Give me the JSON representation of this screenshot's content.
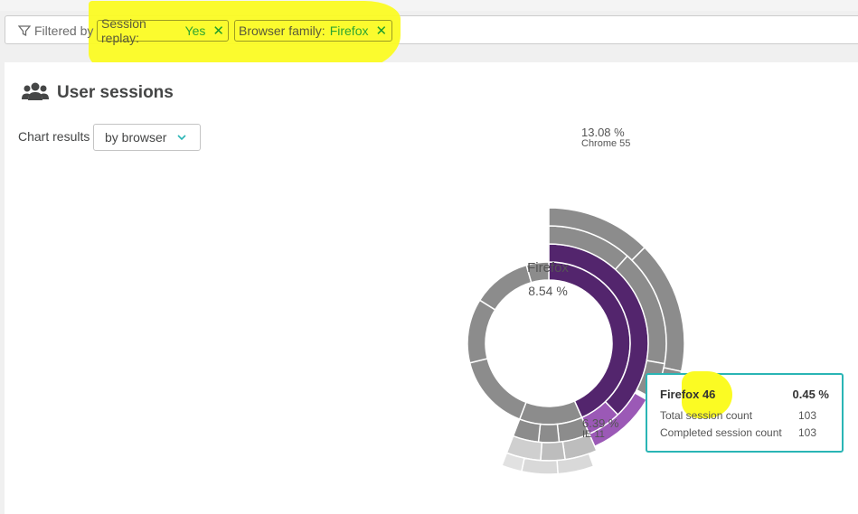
{
  "filter_bar": {
    "label": "Filtered by",
    "chips": [
      {
        "key": "Session replay:",
        "value": "Yes"
      },
      {
        "key": "Browser family:",
        "value": "Firefox"
      }
    ]
  },
  "panel": {
    "title": "User sessions",
    "chart_results_label": "Chart results",
    "dropdown_value": "by browser"
  },
  "chart": {
    "center_name": "Firefox",
    "center_pct": "8.54 %",
    "top_label_pct": "13.08 %",
    "top_label_name": "Chrome 55",
    "bottom_label_pct": "6.39 %",
    "bottom_label_name": "IE 11"
  },
  "tooltip": {
    "title": "Firefox 46",
    "pct": "0.45 %",
    "rows": [
      {
        "label": "Total session count",
        "value": "103"
      },
      {
        "label": "Completed session count",
        "value": "103"
      }
    ]
  },
  "colors": {
    "accent_purple": "#53256d",
    "light_purple": "#9b59b6",
    "gray": "#8c8c8c",
    "teal": "#2ab5b5",
    "highlight_yellow": "#fbfb23",
    "chip_green": "#2ea630"
  }
}
